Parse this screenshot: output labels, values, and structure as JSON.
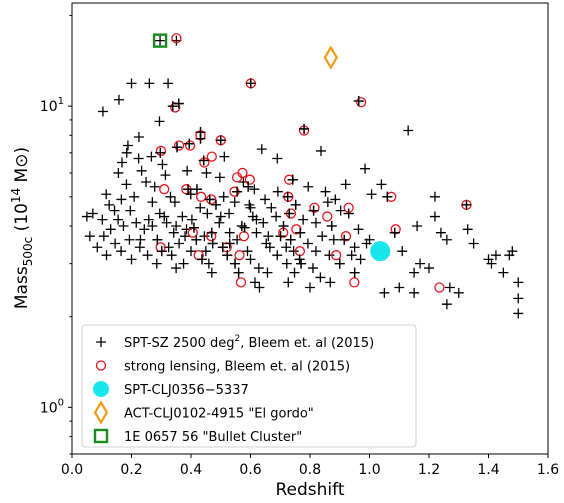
{
  "chart_data": {
    "type": "scatter",
    "x_axis": {
      "label": "Redshift",
      "range": [
        0.0,
        1.6
      ],
      "ticks": [
        "0.0",
        "0.2",
        "0.4",
        "0.6",
        "0.8",
        "1.0",
        "1.2",
        "1.4",
        "1.6"
      ],
      "scale": "linear"
    },
    "y_axis": {
      "label_prefix": "Mass",
      "label_sub": "500c",
      "label_unit_open": " (10",
      "label_unit_exp": "14",
      "label_unit_close": " M⊙)",
      "range": [
        0.7,
        22
      ],
      "ticks": [
        "10",
        "10"
      ],
      "tick_exponents": [
        "0",
        "1"
      ],
      "tick_values": [
        1,
        10
      ],
      "scale": "log"
    },
    "grid": false,
    "legend_position": "lower-left",
    "legend": [
      {
        "marker": "plus",
        "pre": "SPT-SZ 2500 deg",
        "sup": "2",
        "post": ", Bleem et. al (2015)",
        "color": "#000000"
      },
      {
        "marker": "circle-open",
        "pre": "strong lensing, Bleem et. al (2015)",
        "sup": "",
        "post": "",
        "color": "#e8141c"
      },
      {
        "marker": "circle-filled",
        "pre": "SPT-CLJ0356−5337",
        "sup": "",
        "post": "",
        "color": "#17e6ec"
      },
      {
        "marker": "diamond-open",
        "pre": "ACT-CLJ0102-4915 \"El gordo\"",
        "sup": "",
        "post": "",
        "color": "#f39c12"
      },
      {
        "marker": "square-open",
        "pre": "1E 0657 56 \"Bullet Cluster\"",
        "sup": "",
        "post": "",
        "color": "#1a8a1a"
      }
    ],
    "series": [
      {
        "name": "SPT-SZ 2500 deg², Bleem et. al (2015)",
        "marker": "plus",
        "points": [
          [
            0.296,
            16.5
          ],
          [
            0.351,
            16.5
          ],
          [
            0.2,
            11.9
          ],
          [
            0.26,
            11.9
          ],
          [
            0.323,
            11.9
          ],
          [
            0.601,
            11.9
          ],
          [
            0.158,
            10.5
          ],
          [
            0.964,
            10.4
          ],
          [
            0.339,
            10.0
          ],
          [
            0.104,
            9.6
          ],
          [
            0.359,
            10.2
          ],
          [
            0.294,
            8.9
          ],
          [
            0.432,
            8.2
          ],
          [
            0.78,
            8.4
          ],
          [
            1.13,
            8.3
          ],
          [
            0.225,
            7.9
          ],
          [
            0.188,
            7.4
          ],
          [
            0.267,
            6.8
          ],
          [
            0.432,
            7.8
          ],
          [
            0.5,
            7.7
          ],
          [
            0.394,
            7.5
          ],
          [
            0.297,
            7.0
          ],
          [
            0.353,
            7.3
          ],
          [
            0.168,
            6.5
          ],
          [
            0.184,
            7.0
          ],
          [
            0.224,
            6.7
          ],
          [
            0.304,
            6.4
          ],
          [
            0.443,
            6.6
          ],
          [
            0.512,
            6.8
          ],
          [
            0.638,
            7.2
          ],
          [
            0.69,
            6.7
          ],
          [
            0.837,
            7.1
          ],
          [
            0.985,
            6.2
          ],
          [
            0.156,
            6.0
          ],
          [
            0.234,
            6.1
          ],
          [
            0.314,
            5.9
          ],
          [
            0.387,
            6.1
          ],
          [
            0.452,
            6.0
          ],
          [
            0.497,
            5.8
          ],
          [
            0.576,
            5.6
          ],
          [
            0.592,
            5.4
          ],
          [
            0.742,
            5.7
          ],
          [
            0.92,
            5.5
          ],
          [
            1.04,
            5.5
          ],
          [
            0.183,
            5.5
          ],
          [
            0.249,
            5.6
          ],
          [
            0.278,
            5.4
          ],
          [
            0.39,
            5.3
          ],
          [
            0.42,
            5.3
          ],
          [
            0.555,
            5.2
          ],
          [
            0.613,
            5.3
          ],
          [
            0.692,
            5.2
          ],
          [
            0.794,
            5.4
          ],
          [
            0.852,
            5.2
          ],
          [
            1.06,
            5.0
          ],
          [
            1.22,
            5.0
          ],
          [
            0.115,
            5.1
          ],
          [
            0.209,
            5.0
          ],
          [
            0.331,
            5.0
          ],
          [
            0.399,
            5.1
          ],
          [
            0.463,
            4.9
          ],
          [
            0.51,
            5.0
          ],
          [
            0.649,
            4.9
          ],
          [
            0.725,
            5.0
          ],
          [
            0.885,
            4.9
          ],
          [
            1.007,
            5.1
          ],
          [
            0.125,
            4.7
          ],
          [
            0.166,
            4.9
          ],
          [
            0.27,
            4.8
          ],
          [
            0.346,
            4.8
          ],
          [
            0.431,
            4.6
          ],
          [
            0.484,
            4.7
          ],
          [
            0.547,
            4.8
          ],
          [
            0.596,
            4.7
          ],
          [
            0.67,
            4.6
          ],
          [
            0.752,
            4.7
          ],
          [
            0.812,
            4.5
          ],
          [
            0.903,
            4.5
          ],
          [
            1.326,
            4.7
          ],
          [
            0.07,
            4.4
          ],
          [
            0.143,
            4.5
          ],
          [
            0.196,
            4.5
          ],
          [
            0.295,
            4.4
          ],
          [
            0.371,
            4.3
          ],
          [
            0.455,
            4.4
          ],
          [
            0.528,
            4.4
          ],
          [
            0.608,
            4.3
          ],
          [
            0.686,
            4.3
          ],
          [
            0.777,
            4.2
          ],
          [
            0.93,
            4.4
          ],
          [
            1.22,
            4.3
          ],
          [
            0.05,
            4.3
          ],
          [
            0.102,
            4.2
          ],
          [
            0.216,
            4.1
          ],
          [
            0.258,
            4.2
          ],
          [
            0.318,
            4.1
          ],
          [
            0.403,
            4.2
          ],
          [
            0.495,
            4.1
          ],
          [
            0.571,
            4.0
          ],
          [
            0.643,
            4.1
          ],
          [
            0.711,
            4.0
          ],
          [
            0.82,
            4.1
          ],
          [
            0.873,
            4.0
          ],
          [
            0.963,
            3.9
          ],
          [
            1.16,
            4.0
          ],
          [
            0.13,
            3.9
          ],
          [
            0.173,
            4.0
          ],
          [
            0.243,
            3.9
          ],
          [
            0.342,
            3.8
          ],
          [
            0.385,
            3.9
          ],
          [
            0.445,
            3.7
          ],
          [
            0.53,
            3.8
          ],
          [
            0.62,
            3.8
          ],
          [
            0.701,
            3.7
          ],
          [
            0.767,
            3.8
          ],
          [
            0.841,
            3.7
          ],
          [
            1.085,
            3.8
          ],
          [
            1.24,
            3.8
          ],
          [
            1.33,
            3.9
          ],
          [
            0.06,
            3.7
          ],
          [
            0.107,
            3.7
          ],
          [
            0.193,
            3.6
          ],
          [
            0.287,
            3.6
          ],
          [
            0.36,
            3.5
          ],
          [
            0.418,
            3.6
          ],
          [
            0.473,
            3.5
          ],
          [
            0.555,
            3.6
          ],
          [
            0.653,
            3.5
          ],
          [
            0.735,
            3.6
          ],
          [
            0.793,
            3.5
          ],
          [
            0.915,
            3.6
          ],
          [
            1.0,
            3.6
          ],
          [
            1.26,
            3.6
          ],
          [
            1.35,
            3.5
          ],
          [
            0.085,
            3.4
          ],
          [
            0.145,
            3.5
          ],
          [
            0.228,
            3.4
          ],
          [
            0.302,
            3.3
          ],
          [
            0.325,
            3.4
          ],
          [
            0.4,
            3.3
          ],
          [
            0.507,
            3.4
          ],
          [
            0.59,
            3.3
          ],
          [
            0.665,
            3.4
          ],
          [
            0.745,
            3.3
          ],
          [
            0.82,
            3.3
          ],
          [
            0.95,
            3.4
          ],
          [
            1.11,
            3.3
          ],
          [
            0.116,
            3.2
          ],
          [
            0.165,
            3.3
          ],
          [
            0.254,
            3.2
          ],
          [
            0.335,
            3.2
          ],
          [
            0.437,
            3.1
          ],
          [
            0.522,
            3.2
          ],
          [
            0.6,
            3.1
          ],
          [
            0.69,
            3.2
          ],
          [
            0.765,
            3.1
          ],
          [
            0.865,
            3.2
          ],
          [
            0.97,
            3.1
          ],
          [
            1.05,
            3.2
          ],
          [
            0.2,
            3.1
          ],
          [
            0.285,
            3.0
          ],
          [
            0.375,
            3.0
          ],
          [
            0.46,
            3.0
          ],
          [
            0.548,
            3.0
          ],
          [
            0.628,
            2.9
          ],
          [
            0.722,
            3.0
          ],
          [
            0.81,
            2.9
          ],
          [
            0.9,
            3.0
          ],
          [
            1.17,
            3.0
          ],
          [
            1.41,
            3.0
          ],
          [
            0.35,
            2.9
          ],
          [
            0.47,
            2.8
          ],
          [
            0.56,
            2.8
          ],
          [
            0.657,
            2.8
          ],
          [
            0.748,
            2.8
          ],
          [
            0.835,
            2.7
          ],
          [
            0.95,
            2.8
          ],
          [
            1.45,
            2.8
          ],
          [
            1.5,
            2.6
          ],
          [
            0.615,
            2.6
          ],
          [
            0.727,
            2.6
          ],
          [
            0.868,
            2.6
          ],
          [
            1.1,
            2.5
          ],
          [
            1.27,
            2.5
          ],
          [
            0.63,
            2.5
          ],
          [
            0.8,
            2.5
          ],
          [
            1.05,
            2.4
          ],
          [
            1.15,
            2.4
          ],
          [
            1.3,
            2.4
          ],
          [
            1.5,
            2.3
          ],
          [
            1.26,
            2.2
          ],
          [
            1.5,
            2.05
          ],
          [
            1.4,
            3.1
          ],
          [
            1.425,
            3.2
          ],
          [
            1.47,
            3.2
          ],
          [
            1.48,
            3.3
          ],
          [
            1.15,
            2.8
          ],
          [
            1.2,
            2.9
          ],
          [
            0.155,
            4.2
          ],
          [
            0.23,
            3.6
          ],
          [
            0.41,
            3.95
          ],
          [
            0.58,
            3.95
          ],
          [
            0.66,
            3.7
          ],
          [
            0.88,
            3.6
          ],
          [
            0.99,
            3.5
          ],
          [
            0.5,
            4.3
          ],
          [
            0.27,
            4.0
          ],
          [
            0.38,
            3.7
          ],
          [
            0.53,
            3.5
          ],
          [
            0.72,
            3.4
          ],
          [
            0.6,
            4.6
          ],
          [
            0.86,
            4.8
          ],
          [
            0.31,
            4.3
          ],
          [
            0.45,
            3.3
          ],
          [
            0.77,
            3.0
          ],
          [
            0.94,
            3.2
          ],
          [
            0.35,
            4.0
          ],
          [
            0.47,
            3.8
          ],
          [
            0.62,
            4.2
          ],
          [
            0.73,
            4.4
          ]
        ],
        "color": "#000000"
      },
      {
        "name": "strong lensing, Bleem et. al (2015)",
        "marker": "circle-open",
        "points": [
          [
            0.351,
            16.8
          ],
          [
            0.601,
            11.9
          ],
          [
            0.972,
            10.3
          ],
          [
            0.347,
            9.9
          ],
          [
            0.78,
            8.3
          ],
          [
            0.432,
            8.0
          ],
          [
            0.5,
            7.7
          ],
          [
            0.36,
            7.4
          ],
          [
            0.299,
            7.1
          ],
          [
            0.397,
            7.4
          ],
          [
            0.47,
            6.8
          ],
          [
            0.445,
            6.5
          ],
          [
            0.573,
            6.0
          ],
          [
            0.555,
            5.8
          ],
          [
            0.598,
            5.7
          ],
          [
            0.31,
            5.3
          ],
          [
            0.384,
            5.3
          ],
          [
            0.434,
            5.0
          ],
          [
            0.468,
            4.9
          ],
          [
            0.546,
            5.2
          ],
          [
            0.73,
            5.7
          ],
          [
            0.727,
            5.0
          ],
          [
            0.815,
            4.6
          ],
          [
            0.93,
            4.6
          ],
          [
            1.073,
            5.0
          ],
          [
            1.326,
            4.7
          ],
          [
            0.858,
            4.3
          ],
          [
            0.736,
            4.4
          ],
          [
            0.406,
            3.8
          ],
          [
            0.468,
            3.7
          ],
          [
            0.578,
            3.7
          ],
          [
            0.754,
            3.9
          ],
          [
            0.921,
            3.7
          ],
          [
            1.088,
            3.9
          ],
          [
            0.298,
            3.4
          ],
          [
            0.426,
            3.2
          ],
          [
            0.563,
            3.2
          ],
          [
            0.766,
            3.3
          ],
          [
            0.888,
            3.2
          ],
          [
            0.949,
            2.6
          ],
          [
            0.568,
            2.6
          ],
          [
            1.235,
            2.5
          ],
          [
            0.71,
            3.8
          ],
          [
            0.52,
            3.4
          ]
        ],
        "color": "#e8141c"
      },
      {
        "name": "SPT-CLJ0356−5337",
        "marker": "circle-filled",
        "points": [
          [
            1.036,
            3.3
          ]
        ],
        "color": "#17e6ec"
      },
      {
        "name": "ACT-CLJ0102-4915 \"El gordo\"",
        "marker": "diamond-open",
        "points": [
          [
            0.87,
            14.5
          ]
        ],
        "color": "#f39c12"
      },
      {
        "name": "1E 0657 56 \"Bullet Cluster\"",
        "marker": "square-open",
        "points": [
          [
            0.296,
            16.5
          ]
        ],
        "color": "#1a8a1a"
      }
    ]
  }
}
